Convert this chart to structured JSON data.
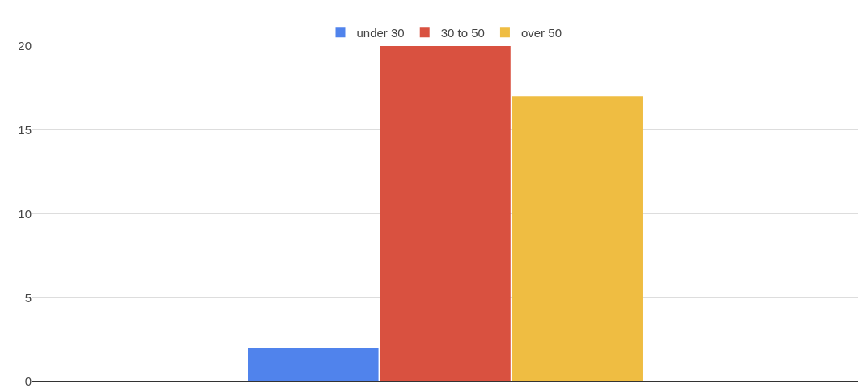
{
  "chart_data": {
    "type": "bar",
    "categories": [
      null
    ],
    "series": [
      {
        "name": "under 30",
        "color": "#5083ec",
        "values": [
          2
        ]
      },
      {
        "name": "30 to 50",
        "color": "#d95140",
        "values": [
          20
        ]
      },
      {
        "name": "over 50",
        "color": "#efbd42",
        "values": [
          17
        ]
      }
    ],
    "ylim": [
      0,
      20
    ],
    "yticks": [
      0,
      5,
      10,
      15,
      20
    ],
    "grid": "y",
    "legend": "top",
    "tick_labels": "y"
  }
}
